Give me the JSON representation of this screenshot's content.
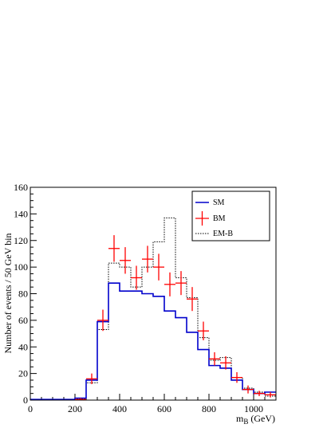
{
  "chart_data": {
    "type": "histogram",
    "xlabel_main": "m",
    "xlabel_sub": "B",
    "xlabel_unit": " (GeV)",
    "ylabel": "Number of events / 50 GeV bin",
    "xlim": [
      0,
      1100
    ],
    "ylim": [
      0,
      160
    ],
    "x_ticks": [
      0,
      200,
      400,
      600,
      800,
      1000
    ],
    "y_ticks": [
      0,
      20,
      40,
      60,
      80,
      100,
      120,
      140,
      160
    ],
    "bin_width": 50,
    "bin_edges": [
      0,
      50,
      100,
      150,
      200,
      250,
      300,
      350,
      400,
      450,
      500,
      550,
      600,
      650,
      700,
      750,
      800,
      850,
      900,
      950,
      1000,
      1050,
      1100
    ],
    "legend_position": "top-right",
    "series": [
      {
        "name": "SM",
        "style": "step-solid",
        "color": "#0000cc",
        "values": [
          0.5,
          0.5,
          0.5,
          0.5,
          1.5,
          15,
          59,
          88,
          82,
          82,
          80,
          78,
          67,
          62,
          51,
          38,
          26,
          24,
          15,
          8,
          5,
          6
        ]
      },
      {
        "name": "BM",
        "style": "points-with-errors",
        "color": "#ff0000",
        "x_centers": [
          225,
          275,
          325,
          375,
          425,
          475,
          525,
          575,
          625,
          675,
          725,
          775,
          825,
          875,
          925,
          975,
          1025,
          1075
        ],
        "values": [
          0.5,
          16,
          60,
          114,
          105,
          92,
          106,
          100,
          87,
          88,
          76,
          52,
          31,
          28,
          17,
          8,
          5,
          4
        ],
        "errors": [
          1,
          4,
          8,
          10,
          10,
          9,
          10,
          10,
          9,
          9,
          9,
          7,
          5,
          5,
          4,
          3,
          2,
          2
        ]
      },
      {
        "name": "EM-B",
        "style": "step-dotted",
        "color": "#000000",
        "values": [
          0,
          0,
          0,
          0,
          1,
          13,
          53,
          103,
          100,
          85,
          100,
          119,
          137,
          92,
          77,
          47,
          30,
          32,
          17,
          9,
          6,
          3
        ]
      }
    ]
  }
}
